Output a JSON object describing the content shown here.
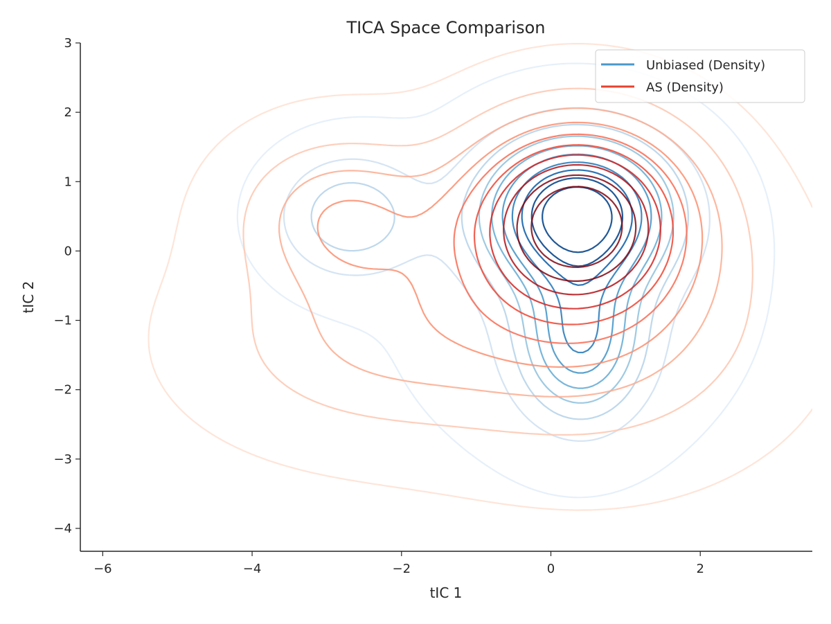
{
  "chart_data": {
    "type": "contour",
    "title": "TICA Space Comparison",
    "xlabel": "tIC 1",
    "ylabel": "tIC 2",
    "xlim": [
      -6.3,
      3.5
    ],
    "ylim": [
      -4.33,
      3.0
    ],
    "x_ticks": [
      -6,
      -4,
      -2,
      0,
      2
    ],
    "x_tick_labels": [
      "−6",
      "−4",
      "−2",
      "0",
      "2"
    ],
    "y_ticks": [
      -4,
      -3,
      -2,
      -1,
      0,
      1,
      2,
      3
    ],
    "y_tick_labels": [
      "−4",
      "−3",
      "−2",
      "−1",
      "0",
      "1",
      "2",
      "3"
    ],
    "grid": false,
    "legend_position": "top-right",
    "series": [
      {
        "name": "Unbiased (Density)",
        "legend_color": "#4a98c9",
        "colors": [
          "#e3eef9",
          "#d0e1f2",
          "#b7d4ea",
          "#94c4df",
          "#6aaed6",
          "#4a98c9",
          "#2e7ebc",
          "#1764ab",
          "#08468b"
        ],
        "modes": [
          {
            "x": 0.35,
            "y": 0.55,
            "sx": 0.8,
            "sy": 0.7,
            "w": 1.0
          },
          {
            "x": 0.4,
            "y": -1.3,
            "sx": 0.55,
            "sy": 0.75,
            "w": 0.55
          },
          {
            "x": -2.7,
            "y": 0.5,
            "sx": 0.65,
            "sy": 0.6,
            "w": 0.3
          },
          {
            "x": 0.3,
            "y": -0.5,
            "sx": 1.5,
            "sy": 1.6,
            "w": 0.1
          }
        ]
      },
      {
        "name": "AS (Density)",
        "legend_color": "#e8412e",
        "colors": [
          "#fee0d2",
          "#fdc7b0",
          "#fcab8f",
          "#fc8e6e",
          "#f96b52",
          "#ef4533",
          "#d42422",
          "#b01217",
          "#7f0510"
        ],
        "modes": [
          {
            "x": 0.35,
            "y": 0.5,
            "sx": 1.0,
            "sy": 0.9,
            "w": 1.0
          },
          {
            "x": -2.8,
            "y": 0.5,
            "sx": 0.9,
            "sy": 0.75,
            "w": 0.32
          },
          {
            "x": -2.4,
            "y": -1.3,
            "sx": 1.4,
            "sy": 0.9,
            "w": 0.22
          },
          {
            "x": 0.5,
            "y": -1.0,
            "sx": 1.5,
            "sy": 1.2,
            "w": 0.3
          }
        ]
      }
    ]
  }
}
